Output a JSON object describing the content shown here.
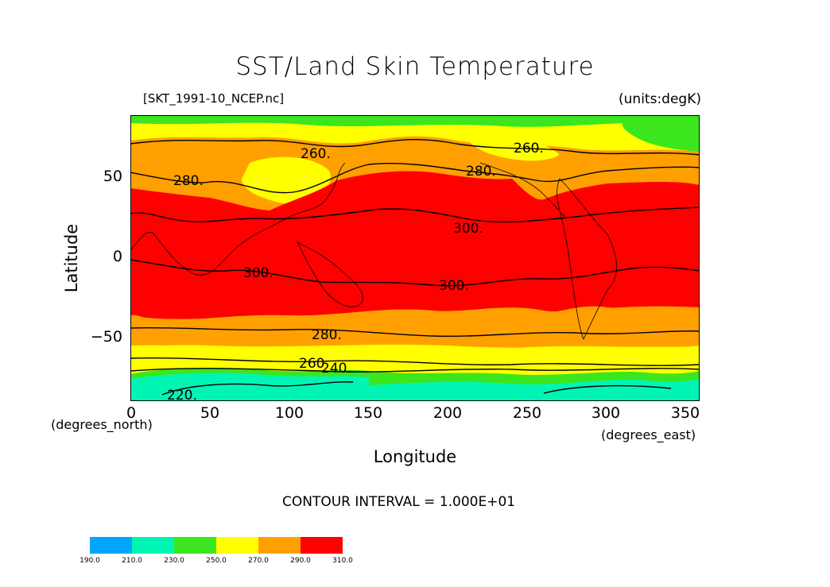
{
  "title": "SST/Land Skin Temperature",
  "file_label": "[SKT_1991-10_NCEP.nc]",
  "units_label": "(units:degK)",
  "y_axis_label": "Latitude",
  "x_axis_label": "Longitude",
  "y_axis_unit": "(degrees_north)",
  "x_axis_unit": "(degrees_east)",
  "contour_interval": "CONTOUR INTERVAL = 1.000E+01",
  "x_ticks": [
    "0",
    "50",
    "100",
    "150",
    "200",
    "250",
    "300",
    "350"
  ],
  "y_ticks": [
    "50",
    "0",
    "−50"
  ],
  "contour_labels": [
    "260.",
    "260.",
    "280.",
    "280.",
    "300.",
    "300.",
    "300.",
    "280.",
    "260",
    "240.",
    "220."
  ],
  "colors": {
    "c190": "#00a5ff",
    "c210": "#00f5b4",
    "c230": "#3ce61e",
    "c250": "#ffff00",
    "c270": "#ffa000",
    "c290": "#ff0000",
    "land_line": "#000000"
  },
  "colorbar": {
    "levels": [
      "190.0",
      "210.0",
      "230.0",
      "250.0",
      "270.0",
      "290.0",
      "310.0"
    ]
  },
  "chart_data": {
    "type": "heatmap",
    "title": "SST/Land Skin Temperature",
    "xlabel": "Longitude",
    "ylabel": "Latitude",
    "xlim": [
      0,
      360
    ],
    "ylim": [
      -90,
      90
    ],
    "x_ticks": [
      0,
      50,
      100,
      150,
      200,
      250,
      300,
      350
    ],
    "y_ticks": [
      50,
      0,
      -50
    ],
    "units": "degK",
    "contour_interval": 10,
    "zonal_bands": [
      {
        "lat_from": 90,
        "lat_to": 78,
        "range": "250-270"
      },
      {
        "lat_from": 78,
        "lat_to": 60,
        "range": "270-290"
      },
      {
        "lat_from": 60,
        "lat_to": 45,
        "range": "270-290"
      },
      {
        "lat_from": 45,
        "lat_to": -35,
        "range": "290-310"
      },
      {
        "lat_from": -35,
        "lat_to": -58,
        "range": "270-290"
      },
      {
        "lat_from": -58,
        "lat_to": -70,
        "range": "250-270"
      },
      {
        "lat_from": -70,
        "lat_to": -90,
        "range": "210-250"
      }
    ]
  }
}
